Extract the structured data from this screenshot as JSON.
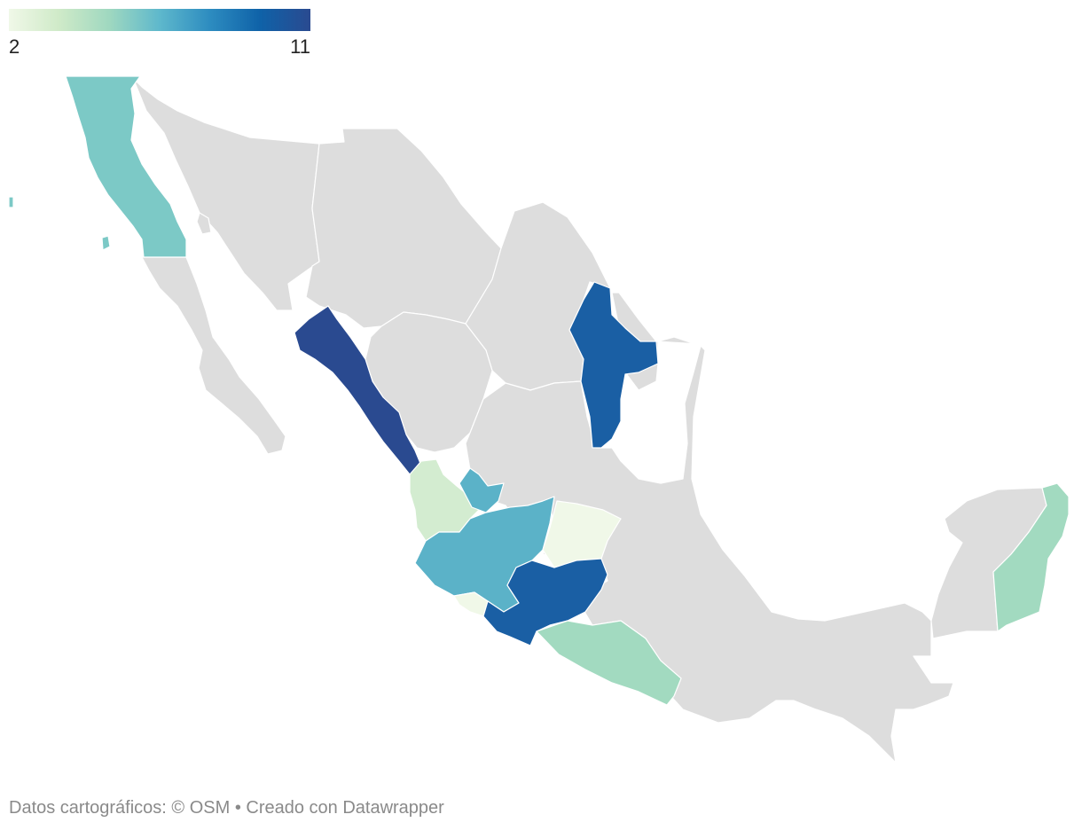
{
  "legend": {
    "min_label": "2",
    "max_label": "11",
    "min_value": 2,
    "max_value": 11,
    "colors": [
      "#f0f8e8",
      "#cfeac8",
      "#9fd8c0",
      "#5eb8cc",
      "#2d8cc0",
      "#0f62a8",
      "#2a4a90"
    ]
  },
  "no_data_color": "#dddddd",
  "regions": [
    {
      "id": "baja-california",
      "color": "#7cc9c6"
    },
    {
      "id": "sinaloa",
      "color": "#2a4a90"
    },
    {
      "id": "nuevo-leon",
      "color": "#1a5fa4"
    },
    {
      "id": "nayarit",
      "color": "#d3ecd0"
    },
    {
      "id": "aguascalientes",
      "color": "#5bb2c8"
    },
    {
      "id": "jalisco",
      "color": "#5bb2c8"
    },
    {
      "id": "guanajuato",
      "color": "#f0f8e8"
    },
    {
      "id": "colima",
      "color": "#f0f8e8"
    },
    {
      "id": "michoacan",
      "color": "#1a5fa4"
    },
    {
      "id": "oaxaca",
      "color": "#a2dac0"
    },
    {
      "id": "quintana-roo",
      "color": "#a2dac0"
    }
  ],
  "footer": {
    "credit": "Datos cartográficos: © OSM  • Creado con Datawrapper"
  }
}
